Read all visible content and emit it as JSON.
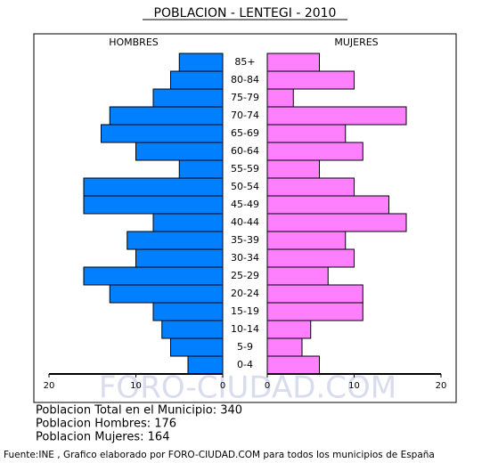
{
  "chart_data": {
    "type": "pyramid",
    "title": "POBLACION - LENTEGI - 2010",
    "categories": [
      "85+",
      "80-84",
      "75-79",
      "70-74",
      "65-69",
      "60-64",
      "55-59",
      "50-54",
      "45-49",
      "40-44",
      "35-39",
      "30-34",
      "25-29",
      "20-24",
      "15-19",
      "10-14",
      "5-9",
      "0-4"
    ],
    "series": [
      {
        "name": "HOMBRES",
        "color": "#0080ff",
        "values": [
          5,
          6,
          8,
          13,
          14,
          10,
          5,
          16,
          16,
          8,
          11,
          10,
          16,
          13,
          8,
          7,
          6,
          4
        ]
      },
      {
        "name": "MUJERES",
        "color": "#ff80ff",
        "values": [
          6,
          10,
          3,
          16,
          9,
          11,
          6,
          10,
          14,
          16,
          9,
          10,
          7,
          11,
          11,
          5,
          4,
          6
        ]
      }
    ],
    "xlim": [
      0,
      20
    ],
    "xticks": [
      0,
      10,
      20
    ],
    "watermark": "FORO-CIUDAD.COM",
    "summary": [
      "Poblacion Total en el Municipio: 340",
      "Poblacion Hombres: 176",
      "Poblacion Mujeres: 164"
    ],
    "footnote": "Fuente:INE , Grafico elaborado por FORO-CIUDAD.COM para todos los municipios de España"
  }
}
